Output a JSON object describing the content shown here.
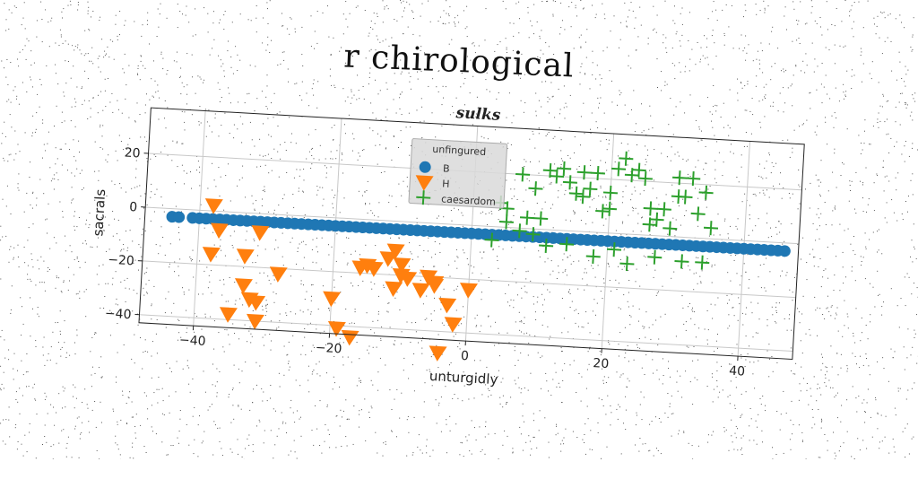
{
  "suptitle": "r chirological",
  "chart_data": {
    "type": "scatter",
    "title": "sulks",
    "xlabel": "unturgidly",
    "ylabel": "sacrals",
    "xlim": [
      -48,
      48
    ],
    "ylim": [
      -43,
      37
    ],
    "xticks": [
      -40,
      -20,
      0,
      20,
      40
    ],
    "yticks": [
      -40,
      -20,
      0,
      20
    ],
    "grid": true,
    "legend": {
      "title": "unfingured",
      "placement": "upper center"
    },
    "series": [
      {
        "name": "B",
        "marker": "circle",
        "color": "#1f77b4",
        "x": [
          -44,
          -43,
          -41,
          -40,
          -39,
          -38,
          -37,
          -36,
          -35,
          -34,
          -33,
          -32,
          -31,
          -30,
          -29,
          -28,
          -27,
          -26,
          -25,
          -24,
          -23,
          -22,
          -21,
          -20,
          -19,
          -18,
          -17,
          -16,
          -15,
          -14,
          -13,
          -12,
          -11,
          -10,
          -9,
          -8,
          -7,
          -6,
          -5,
          -4,
          -3,
          -2,
          -1,
          0,
          1,
          2,
          3,
          4,
          5,
          6,
          7,
          8,
          9,
          10,
          11,
          12,
          13,
          14,
          15,
          16,
          17,
          18,
          19,
          20,
          21,
          22,
          23,
          24,
          25,
          26,
          27,
          28,
          29,
          30,
          31,
          32,
          33,
          34,
          35,
          36,
          37,
          38,
          39,
          40,
          41,
          42,
          43,
          44,
          45,
          46
        ],
        "y": [
          -3,
          -3,
          -3,
          -3,
          -3,
          -3,
          -3,
          -3,
          -3,
          -3,
          -3,
          -3,
          -3,
          -3,
          -3,
          -3,
          -3,
          -3,
          -3,
          -3,
          -3,
          -3,
          -3,
          -3,
          -3,
          -3,
          -3,
          -3,
          -3,
          -3,
          -3,
          -3,
          -3,
          -3,
          -3,
          -3,
          -3,
          -3,
          -3,
          -3,
          -3,
          -3,
          -3,
          -3,
          -3,
          -3,
          -3,
          -3,
          -3,
          -3,
          -3,
          -3,
          -3,
          -3,
          -3,
          -3,
          -3,
          -3,
          -3,
          -3,
          -3,
          -3,
          -3,
          -3,
          -3,
          -3,
          -3,
          -3,
          -3,
          -3,
          -3,
          -3,
          -3,
          -3,
          -3,
          -3,
          -3,
          -3,
          -3,
          -3,
          -3,
          -3,
          -3,
          -3,
          -3,
          -3,
          -3,
          -3,
          -3,
          -3
        ]
      },
      {
        "name": "H",
        "marker": "triangle_down",
        "color": "#ff7f0e",
        "x": [
          -38,
          -37,
          -38,
          -33,
          -31,
          -33,
          -32,
          -31,
          -35,
          -31,
          -28,
          -20,
          -19,
          -17,
          -16,
          -15,
          -14,
          -12,
          -11,
          -11,
          -10,
          -10,
          -9,
          -7,
          -6,
          -5,
          -5,
          -3,
          -4,
          -2,
          0
        ],
        "y": [
          2,
          -7,
          -16,
          -16,
          -7,
          -27,
          -32,
          -33,
          -38,
          -40,
          -22,
          -30,
          -41,
          -44,
          -18,
          -17,
          -18,
          -14,
          -25,
          -11,
          -16,
          -20,
          -21,
          -25,
          -20,
          -22,
          -23,
          -30,
          -48,
          -37,
          -24
        ]
      },
      {
        "name": "caesardom",
        "marker": "plus",
        "color": "#2ca02c",
        "x": [
          4,
          5,
          7,
          8,
          9,
          10,
          11,
          12,
          13,
          14,
          15,
          16,
          17,
          18,
          19,
          20,
          21,
          22,
          23,
          24,
          25,
          26,
          27,
          28,
          29,
          30,
          31,
          32,
          33,
          34,
          35,
          3,
          7,
          9,
          11,
          14,
          18,
          21,
          23,
          27,
          31,
          34,
          5,
          16,
          20,
          26,
          30
        ],
        "y": [
          9,
          2,
          20,
          4,
          15,
          4,
          22,
          20,
          23,
          18,
          14,
          22,
          16,
          22,
          8,
          15,
          24,
          28,
          22,
          24,
          21,
          10,
          6,
          10,
          3,
          15,
          15,
          22,
          9,
          17,
          4,
          -5,
          -1,
          -2,
          -6,
          -5,
          -9,
          -6,
          -11,
          -8,
          -9,
          -9,
          7,
          13,
          9,
          4,
          22
        ]
      }
    ]
  }
}
